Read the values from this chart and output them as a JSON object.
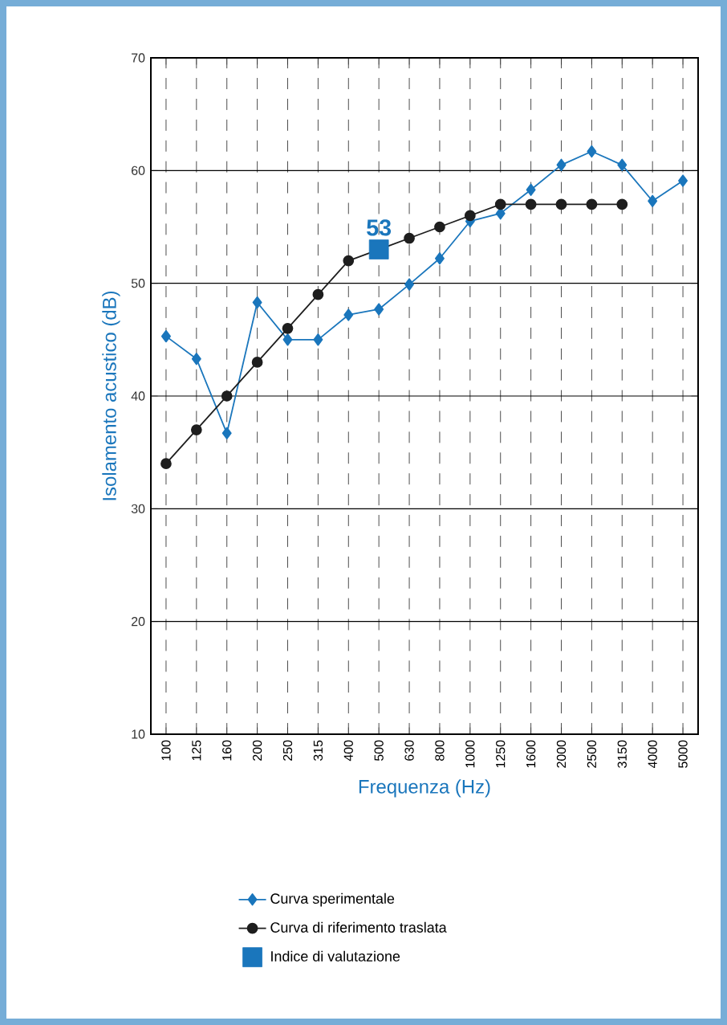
{
  "chart_data": {
    "type": "line",
    "xlabel": "Frequenza (Hz)",
    "ylabel": "Isolamento acustico (dB)",
    "categories": [
      "100",
      "125",
      "160",
      "200",
      "250",
      "315",
      "400",
      "500",
      "630",
      "800",
      "1000",
      "1250",
      "1600",
      "2000",
      "2500",
      "3150",
      "4000",
      "5000"
    ],
    "ylim": [
      10,
      70
    ],
    "yticks": [
      10,
      20,
      30,
      40,
      50,
      60,
      70
    ],
    "grid": true,
    "legend": "bottom",
    "series": [
      {
        "name": "Curva sperimentale",
        "type": "line",
        "marker": "diamond",
        "color": "#1a76bc",
        "values": [
          45.3,
          43.3,
          36.7,
          48.3,
          45,
          45,
          47.2,
          47.7,
          49.9,
          52.2,
          55.5,
          56.2,
          58.3,
          60.5,
          61.7,
          60.5,
          57.3,
          59.1
        ]
      },
      {
        "name": "Curva di riferimento traslata",
        "type": "line",
        "marker": "circle",
        "color": "#1e1e1e",
        "values": [
          34,
          37,
          40,
          43,
          46,
          49,
          52,
          53,
          54,
          55,
          56,
          57,
          57,
          57,
          57,
          57,
          null,
          null
        ]
      },
      {
        "name": "Indice di valutazione",
        "type": "scatter",
        "marker": "square",
        "color": "#1a76bc",
        "values": [
          null,
          null,
          null,
          null,
          null,
          null,
          null,
          53,
          null,
          null,
          null,
          null,
          null,
          null,
          null,
          null,
          null,
          null
        ],
        "value_labels": [
          null,
          null,
          null,
          null,
          null,
          null,
          null,
          "53",
          null,
          null,
          null,
          null,
          null,
          null,
          null,
          null,
          null,
          null
        ]
      }
    ]
  }
}
